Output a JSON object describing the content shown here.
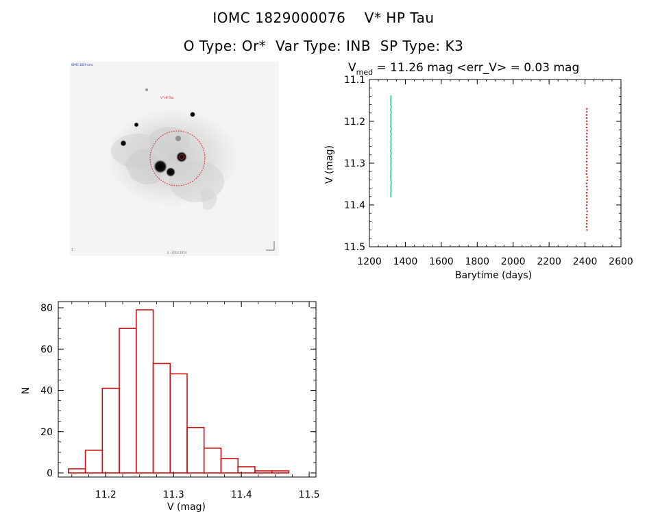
{
  "header": {
    "line1": "IOMC 1829000076    V* HP Tau",
    "line2": "O Type: Or*  Var Type: INB  SP Type: K3"
  },
  "thumbnail": {
    "corner_tl": "IOMC 1829 omc",
    "target_label": "V* HP Tau",
    "corner_bl": "1'",
    "bottom_center": "2 - 2013 2014"
  },
  "colors": {
    "green_series": "#33dd88",
    "red_series": "#cc1111",
    "hist_edge": "#cc1111",
    "circle": "#dd2222"
  },
  "chart_data": [
    {
      "type": "scatter",
      "title_prefix": "V",
      "title_sub": "med",
      "title_rest": " = 11.26 mag <err_V> = 0.03 mag",
      "xlabel": "Barytime (days)",
      "ylabel": "V (mag)",
      "xlim": [
        1200,
        2600
      ],
      "ylim": [
        11.1,
        11.5
      ],
      "y_inverted": true,
      "xticks": [
        1200,
        1400,
        1600,
        1800,
        2000,
        2200,
        2400,
        2600
      ],
      "yticks": [
        "11.1",
        "11.2",
        "11.3",
        "11.4",
        "11.5"
      ],
      "series": [
        {
          "x": 1320,
          "y_min": 11.14,
          "y_max": 11.38,
          "n": 70,
          "color": "#33dd88"
        },
        {
          "x": 2410,
          "y_min": 11.17,
          "y_max": 11.46,
          "n": 40,
          "color": "#cc1111"
        }
      ]
    },
    {
      "type": "bar",
      "histogram": true,
      "xlabel": "V (mag)",
      "ylabel": "N",
      "xlim": [
        11.13,
        11.51
      ],
      "ylim": [
        0,
        83
      ],
      "xticks": [
        "11.2",
        "11.3",
        "11.4",
        "11.5"
      ],
      "yticks": [
        "0",
        "20",
        "40",
        "60",
        "80"
      ],
      "bin_width": 0.025,
      "bin_left_edges": [
        11.145,
        11.17,
        11.195,
        11.22,
        11.245,
        11.27,
        11.295,
        11.32,
        11.345,
        11.37,
        11.395,
        11.42,
        11.445
      ],
      "values": [
        2,
        11,
        41,
        70,
        79,
        53,
        48,
        22,
        12,
        7,
        3,
        1,
        1
      ]
    }
  ]
}
